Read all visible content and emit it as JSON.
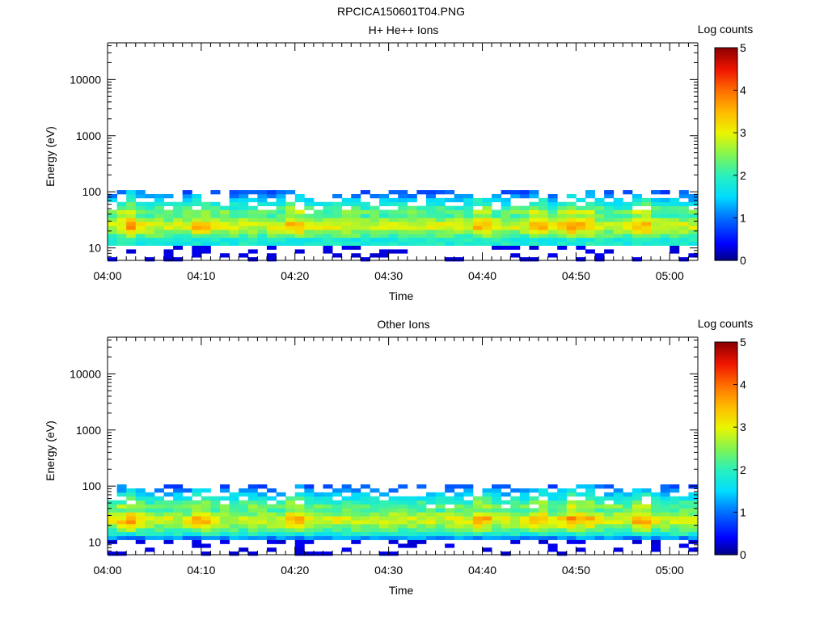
{
  "figure": {
    "title": "RPCICA150601T04.PNG"
  },
  "chart_data": [
    {
      "type": "heatmap",
      "title": "H+ He++ Ions",
      "xlabel": "Time",
      "ylabel": "Energy (eV)",
      "x_axis": {
        "type": "time",
        "range": [
          "04:00",
          "05:03"
        ],
        "ticks": [
          "04:00",
          "04:10",
          "04:20",
          "04:30",
          "04:40",
          "04:50",
          "05:00"
        ]
      },
      "y_axis": {
        "type": "log",
        "range": [
          6,
          45000
        ],
        "ticks": [
          10,
          100,
          1000,
          10000
        ],
        "tick_labels": [
          "10",
          "100",
          "1000",
          "10000"
        ]
      },
      "colorbar": {
        "label": "Log counts",
        "range": [
          0,
          5
        ],
        "ticks": [
          "0",
          "1",
          "2",
          "3",
          "4",
          "5"
        ],
        "colormap": "rainbow"
      },
      "energy_bins_eV": [
        6.3,
        7.4,
        8.7,
        10.2,
        12.0,
        14.1,
        16.6,
        19.5,
        23.0,
        27.0,
        31.8,
        37.4,
        44.0,
        51.7,
        60.8,
        71.5,
        84.1,
        98.9
      ],
      "time_bin_minutes": 1,
      "n_time_bins": 63,
      "z_description": "log10 counts per 1-minute x energy bin; strongest (~3.2-3.8) near 20-35 eV at 04:02, 04:40, 04:49-04:51; emission confined below ~100 eV",
      "peak_times_minutes": [
        2.5,
        10,
        20,
        40,
        46,
        49.5,
        51,
        57
      ]
    },
    {
      "type": "heatmap",
      "title": "Other Ions",
      "xlabel": "Time",
      "ylabel": "Energy (eV)",
      "x_axis": {
        "type": "time",
        "range": [
          "04:00",
          "05:03"
        ],
        "ticks": [
          "04:00",
          "04:10",
          "04:20",
          "04:30",
          "04:40",
          "04:50",
          "05:00"
        ]
      },
      "y_axis": {
        "type": "log",
        "range": [
          6,
          45000
        ],
        "ticks": [
          10,
          100,
          1000,
          10000
        ],
        "tick_labels": [
          "10",
          "100",
          "1000",
          "10000"
        ]
      },
      "colorbar": {
        "label": "Log counts",
        "range": [
          0,
          5
        ],
        "ticks": [
          "0",
          "1",
          "2",
          "3",
          "4",
          "5"
        ],
        "colormap": "rainbow"
      },
      "energy_bins_eV": [
        6.3,
        7.4,
        8.7,
        10.2,
        12.0,
        14.1,
        16.6,
        19.5,
        23.0,
        27.0,
        31.8,
        37.4,
        44.0,
        51.7,
        60.8,
        71.5,
        84.1,
        98.9
      ],
      "time_bin_minutes": 1,
      "n_time_bins": 63,
      "z_description": "log10 counts per 1-minute x energy bin; strongest (~3.2-3.8) near 15-35 eV at 04:02, 04:40, 04:49-04:51; emission confined below ~100 eV",
      "peak_times_minutes": [
        2.5,
        10,
        20,
        40,
        46,
        49.5,
        51,
        57
      ]
    }
  ]
}
